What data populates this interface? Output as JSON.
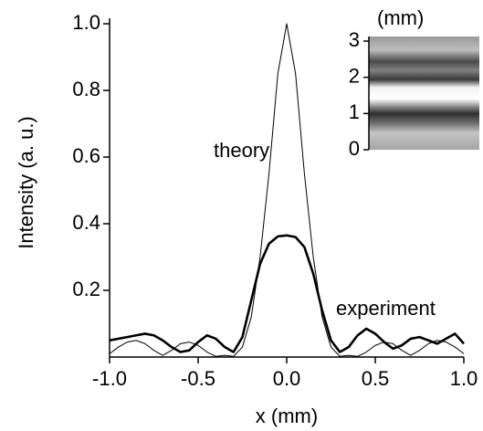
{
  "chart_data": {
    "type": "line",
    "xlabel": "x (mm)",
    "ylabel": "Intensity  (a. u.)",
    "x": [
      -1.0,
      -0.95,
      -0.9,
      -0.85,
      -0.8,
      -0.75,
      -0.7,
      -0.65,
      -0.6,
      -0.55,
      -0.5,
      -0.45,
      -0.4,
      -0.35,
      -0.3,
      -0.25,
      -0.2,
      -0.15,
      -0.1,
      -0.05,
      0,
      0.05,
      0.1,
      0.15,
      0.2,
      0.25,
      0.3,
      0.35,
      0.4,
      0.45,
      0.5,
      0.55,
      0.6,
      0.65,
      0.7,
      0.75,
      0.8,
      0.85,
      0.9,
      0.95,
      1.0
    ],
    "series": [
      {
        "name": "theory",
        "color": "#000000",
        "width": 1,
        "values": [
          0.01,
          0.03,
          0.045,
          0.05,
          0.04,
          0.02,
          0.005,
          0.02,
          0.04,
          0.045,
          0.035,
          0.015,
          0.002,
          0.005,
          0.002,
          0.03,
          0.12,
          0.3,
          0.55,
          0.85,
          1.0,
          0.85,
          0.55,
          0.3,
          0.12,
          0.03,
          0.002,
          0.005,
          0.002,
          0.015,
          0.035,
          0.045,
          0.04,
          0.02,
          0.005,
          0.02,
          0.04,
          0.05,
          0.045,
          0.03,
          0.01
        ]
      },
      {
        "name": "experiment",
        "color": "#000000",
        "width": 2.6,
        "values": [
          0.05,
          0.055,
          0.06,
          0.065,
          0.07,
          0.065,
          0.05,
          0.03,
          0.015,
          0.02,
          0.045,
          0.065,
          0.055,
          0.03,
          0.015,
          0.06,
          0.17,
          0.28,
          0.34,
          0.362,
          0.365,
          0.36,
          0.33,
          0.25,
          0.14,
          0.05,
          0.015,
          0.03,
          0.065,
          0.085,
          0.07,
          0.045,
          0.025,
          0.035,
          0.055,
          0.06,
          0.05,
          0.04,
          0.055,
          0.07,
          0.04
        ]
      }
    ],
    "xlim": [
      -1.0,
      1.0
    ],
    "xticks": [
      {
        "value": -1.0,
        "label": "-1.0"
      },
      -0.5,
      {
        "value": 0,
        "label": "0.0"
      },
      0.5,
      {
        "value": 1.0,
        "label": "1.0"
      }
    ],
    "ylim": [
      0,
      1.0
    ],
    "yticks": [
      0.2,
      0.4,
      0.6,
      0.8,
      {
        "value": 1.0,
        "label": "1.0"
      }
    ],
    "inset": {
      "ylabel": "(mm)",
      "ylim": [
        0,
        3
      ],
      "yticks": [
        0,
        1,
        2,
        3
      ]
    }
  }
}
